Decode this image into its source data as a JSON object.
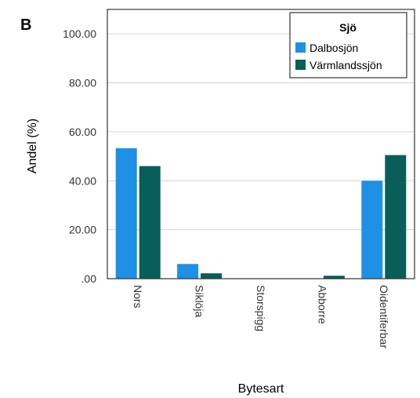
{
  "panel_label": "B",
  "chart_data": {
    "type": "bar",
    "categories": [
      "Nors",
      "Siklöja",
      "Storspigg",
      "Abborre",
      "Oidentiferbar"
    ],
    "series": [
      {
        "name": "Dalbosjön",
        "values": [
          53.3,
          6.0,
          0.0,
          0.0,
          40.0
        ],
        "color": "#1e90e6"
      },
      {
        "name": "Värmlandssjön",
        "values": [
          46.0,
          2.2,
          0.0,
          1.2,
          50.5
        ],
        "color": "#0a5e5a"
      }
    ],
    "xlabel": "Bytesart",
    "ylabel": "Andel (%)",
    "ylim": [
      0,
      110
    ],
    "yticks": [
      ".00",
      "20.00",
      "40.00",
      "60.00",
      "80.00",
      "100.00"
    ],
    "ytick_values": [
      0,
      20,
      40,
      60,
      80,
      100
    ],
    "legend_title": "Sjö",
    "legend_position": "top-right",
    "grid": true
  }
}
